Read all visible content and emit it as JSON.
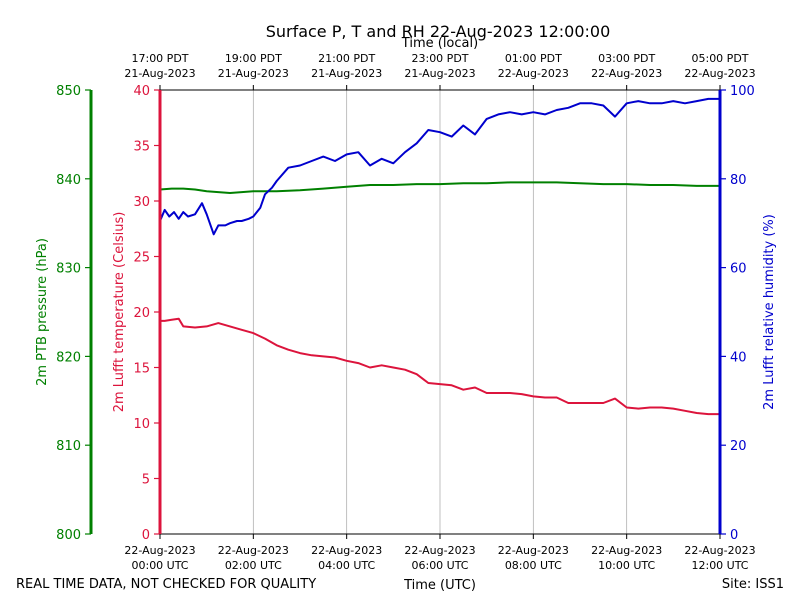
{
  "chart_data": {
    "type": "line",
    "title": "Surface P, T and RH 22-Aug-2023 12:00:00",
    "top_axis_label": "Time (local)",
    "bottom_axis_label": "Time (UTC)",
    "footer_left": "REAL TIME DATA, NOT CHECKED FOR QUALITY",
    "footer_right": "Site: ISS1",
    "x_range_hours_utc": [
      0,
      12
    ],
    "bottom_ticks": [
      {
        "hour": 0,
        "line1": "22-Aug-2023",
        "line2": "00:00 UTC"
      },
      {
        "hour": 2,
        "line1": "22-Aug-2023",
        "line2": "02:00 UTC"
      },
      {
        "hour": 4,
        "line1": "22-Aug-2023",
        "line2": "04:00 UTC"
      },
      {
        "hour": 6,
        "line1": "22-Aug-2023",
        "line2": "06:00 UTC"
      },
      {
        "hour": 8,
        "line1": "22-Aug-2023",
        "line2": "08:00 UTC"
      },
      {
        "hour": 10,
        "line1": "22-Aug-2023",
        "line2": "10:00 UTC"
      },
      {
        "hour": 12,
        "line1": "22-Aug-2023",
        "line2": "12:00 UTC"
      }
    ],
    "top_ticks": [
      {
        "hour": 0,
        "line1": "17:00 PDT",
        "line2": "21-Aug-2023"
      },
      {
        "hour": 2,
        "line1": "19:00 PDT",
        "line2": "21-Aug-2023"
      },
      {
        "hour": 4,
        "line1": "21:00 PDT",
        "line2": "21-Aug-2023"
      },
      {
        "hour": 6,
        "line1": "23:00 PDT",
        "line2": "21-Aug-2023"
      },
      {
        "hour": 8,
        "line1": "01:00 PDT",
        "line2": "22-Aug-2023"
      },
      {
        "hour": 10,
        "line1": "03:00 PDT",
        "line2": "22-Aug-2023"
      },
      {
        "hour": 12,
        "line1": "05:00 PDT",
        "line2": "22-Aug-2023"
      }
    ],
    "grid": {
      "vertical": true,
      "horizontal": false
    },
    "axes": {
      "pressure": {
        "label": "2m PTB pressure (hPa)",
        "range": [
          800,
          850
        ],
        "ticks": [
          800,
          810,
          820,
          830,
          840,
          850
        ],
        "color": "#008000"
      },
      "temperature": {
        "label": "2m Lufft temperature (Celsius)",
        "range": [
          0,
          40
        ],
        "ticks": [
          0,
          5,
          10,
          15,
          20,
          25,
          30,
          35,
          40
        ],
        "color": "#dc143c"
      },
      "humidity": {
        "label": "2m Lufft relative humidity (%)",
        "range": [
          0,
          100
        ],
        "ticks": [
          0,
          20,
          40,
          60,
          80,
          100
        ],
        "color": "#0000cd"
      }
    },
    "series": [
      {
        "axis": "pressure",
        "color": "#008000",
        "x": [
          0,
          0.25,
          0.5,
          0.75,
          1.0,
          1.25,
          1.5,
          1.75,
          2.0,
          2.5,
          3.0,
          3.5,
          4.0,
          4.5,
          5.0,
          5.5,
          6.0,
          6.5,
          7.0,
          7.5,
          8.0,
          8.5,
          9.0,
          9.5,
          10.0,
          10.5,
          11.0,
          11.5,
          12.0
        ],
        "values": [
          838.8,
          838.9,
          838.9,
          838.8,
          838.6,
          838.5,
          838.4,
          838.5,
          838.6,
          838.6,
          838.7,
          838.9,
          839.1,
          839.3,
          839.3,
          839.4,
          839.4,
          839.5,
          839.5,
          839.6,
          839.6,
          839.6,
          839.5,
          839.4,
          839.4,
          839.3,
          839.3,
          839.2,
          839.2
        ]
      },
      {
        "axis": "temperature",
        "color": "#dc143c",
        "x": [
          0,
          0.1,
          0.25,
          0.4,
          0.5,
          0.75,
          1.0,
          1.25,
          1.5,
          1.75,
          2.0,
          2.25,
          2.5,
          2.75,
          3.0,
          3.25,
          3.5,
          3.75,
          4.0,
          4.25,
          4.5,
          4.75,
          5.0,
          5.25,
          5.5,
          5.75,
          6.0,
          6.25,
          6.5,
          6.75,
          7.0,
          7.25,
          7.5,
          7.75,
          8.0,
          8.25,
          8.5,
          8.75,
          9.0,
          9.25,
          9.5,
          9.75,
          10.0,
          10.25,
          10.5,
          10.75,
          11.0,
          11.25,
          11.5,
          11.75,
          12.0
        ],
        "values": [
          19.2,
          19.2,
          19.3,
          19.4,
          18.7,
          18.6,
          18.7,
          19.0,
          18.7,
          18.4,
          18.1,
          17.6,
          17.0,
          16.6,
          16.3,
          16.1,
          16.0,
          15.9,
          15.6,
          15.4,
          15.0,
          15.2,
          15.0,
          14.8,
          14.4,
          13.6,
          13.5,
          13.4,
          13.0,
          13.2,
          12.7,
          12.7,
          12.7,
          12.6,
          12.4,
          12.3,
          12.3,
          11.8,
          11.8,
          11.8,
          11.8,
          12.2,
          11.4,
          11.3,
          11.4,
          11.4,
          11.3,
          11.1,
          10.9,
          10.8,
          10.8
        ]
      },
      {
        "axis": "humidity",
        "color": "#0000cd",
        "x": [
          0,
          0.1,
          0.2,
          0.3,
          0.4,
          0.5,
          0.6,
          0.75,
          0.9,
          1.0,
          1.15,
          1.25,
          1.4,
          1.5,
          1.65,
          1.75,
          1.9,
          2.0,
          2.15,
          2.25,
          2.4,
          2.5,
          2.75,
          3.0,
          3.25,
          3.5,
          3.75,
          4.0,
          4.25,
          4.5,
          4.75,
          5.0,
          5.25,
          5.5,
          5.75,
          6.0,
          6.25,
          6.5,
          6.75,
          7.0,
          7.25,
          7.5,
          7.75,
          8.0,
          8.25,
          8.5,
          8.75,
          9.0,
          9.25,
          9.5,
          9.75,
          10.0,
          10.25,
          10.5,
          10.75,
          11.0,
          11.25,
          11.5,
          11.75,
          12.0
        ],
        "values": [
          70.5,
          73.0,
          71.5,
          72.5,
          71.0,
          72.5,
          71.5,
          72.0,
          74.5,
          72.0,
          67.5,
          69.5,
          69.5,
          70.0,
          70.5,
          70.5,
          71.0,
          71.5,
          73.5,
          76.5,
          78.0,
          79.5,
          82.5,
          83.0,
          84.0,
          85.0,
          84.0,
          85.5,
          86.0,
          83.0,
          84.5,
          83.5,
          86.0,
          88.0,
          91.0,
          90.5,
          89.5,
          92.0,
          90.0,
          93.5,
          94.5,
          95.0,
          94.5,
          95.0,
          94.5,
          95.5,
          96.0,
          97.0,
          97.0,
          96.5,
          94.0,
          97.0,
          97.5,
          97.0,
          97.0,
          97.5,
          97.0,
          97.5,
          98.0,
          98.0
        ]
      }
    ]
  }
}
